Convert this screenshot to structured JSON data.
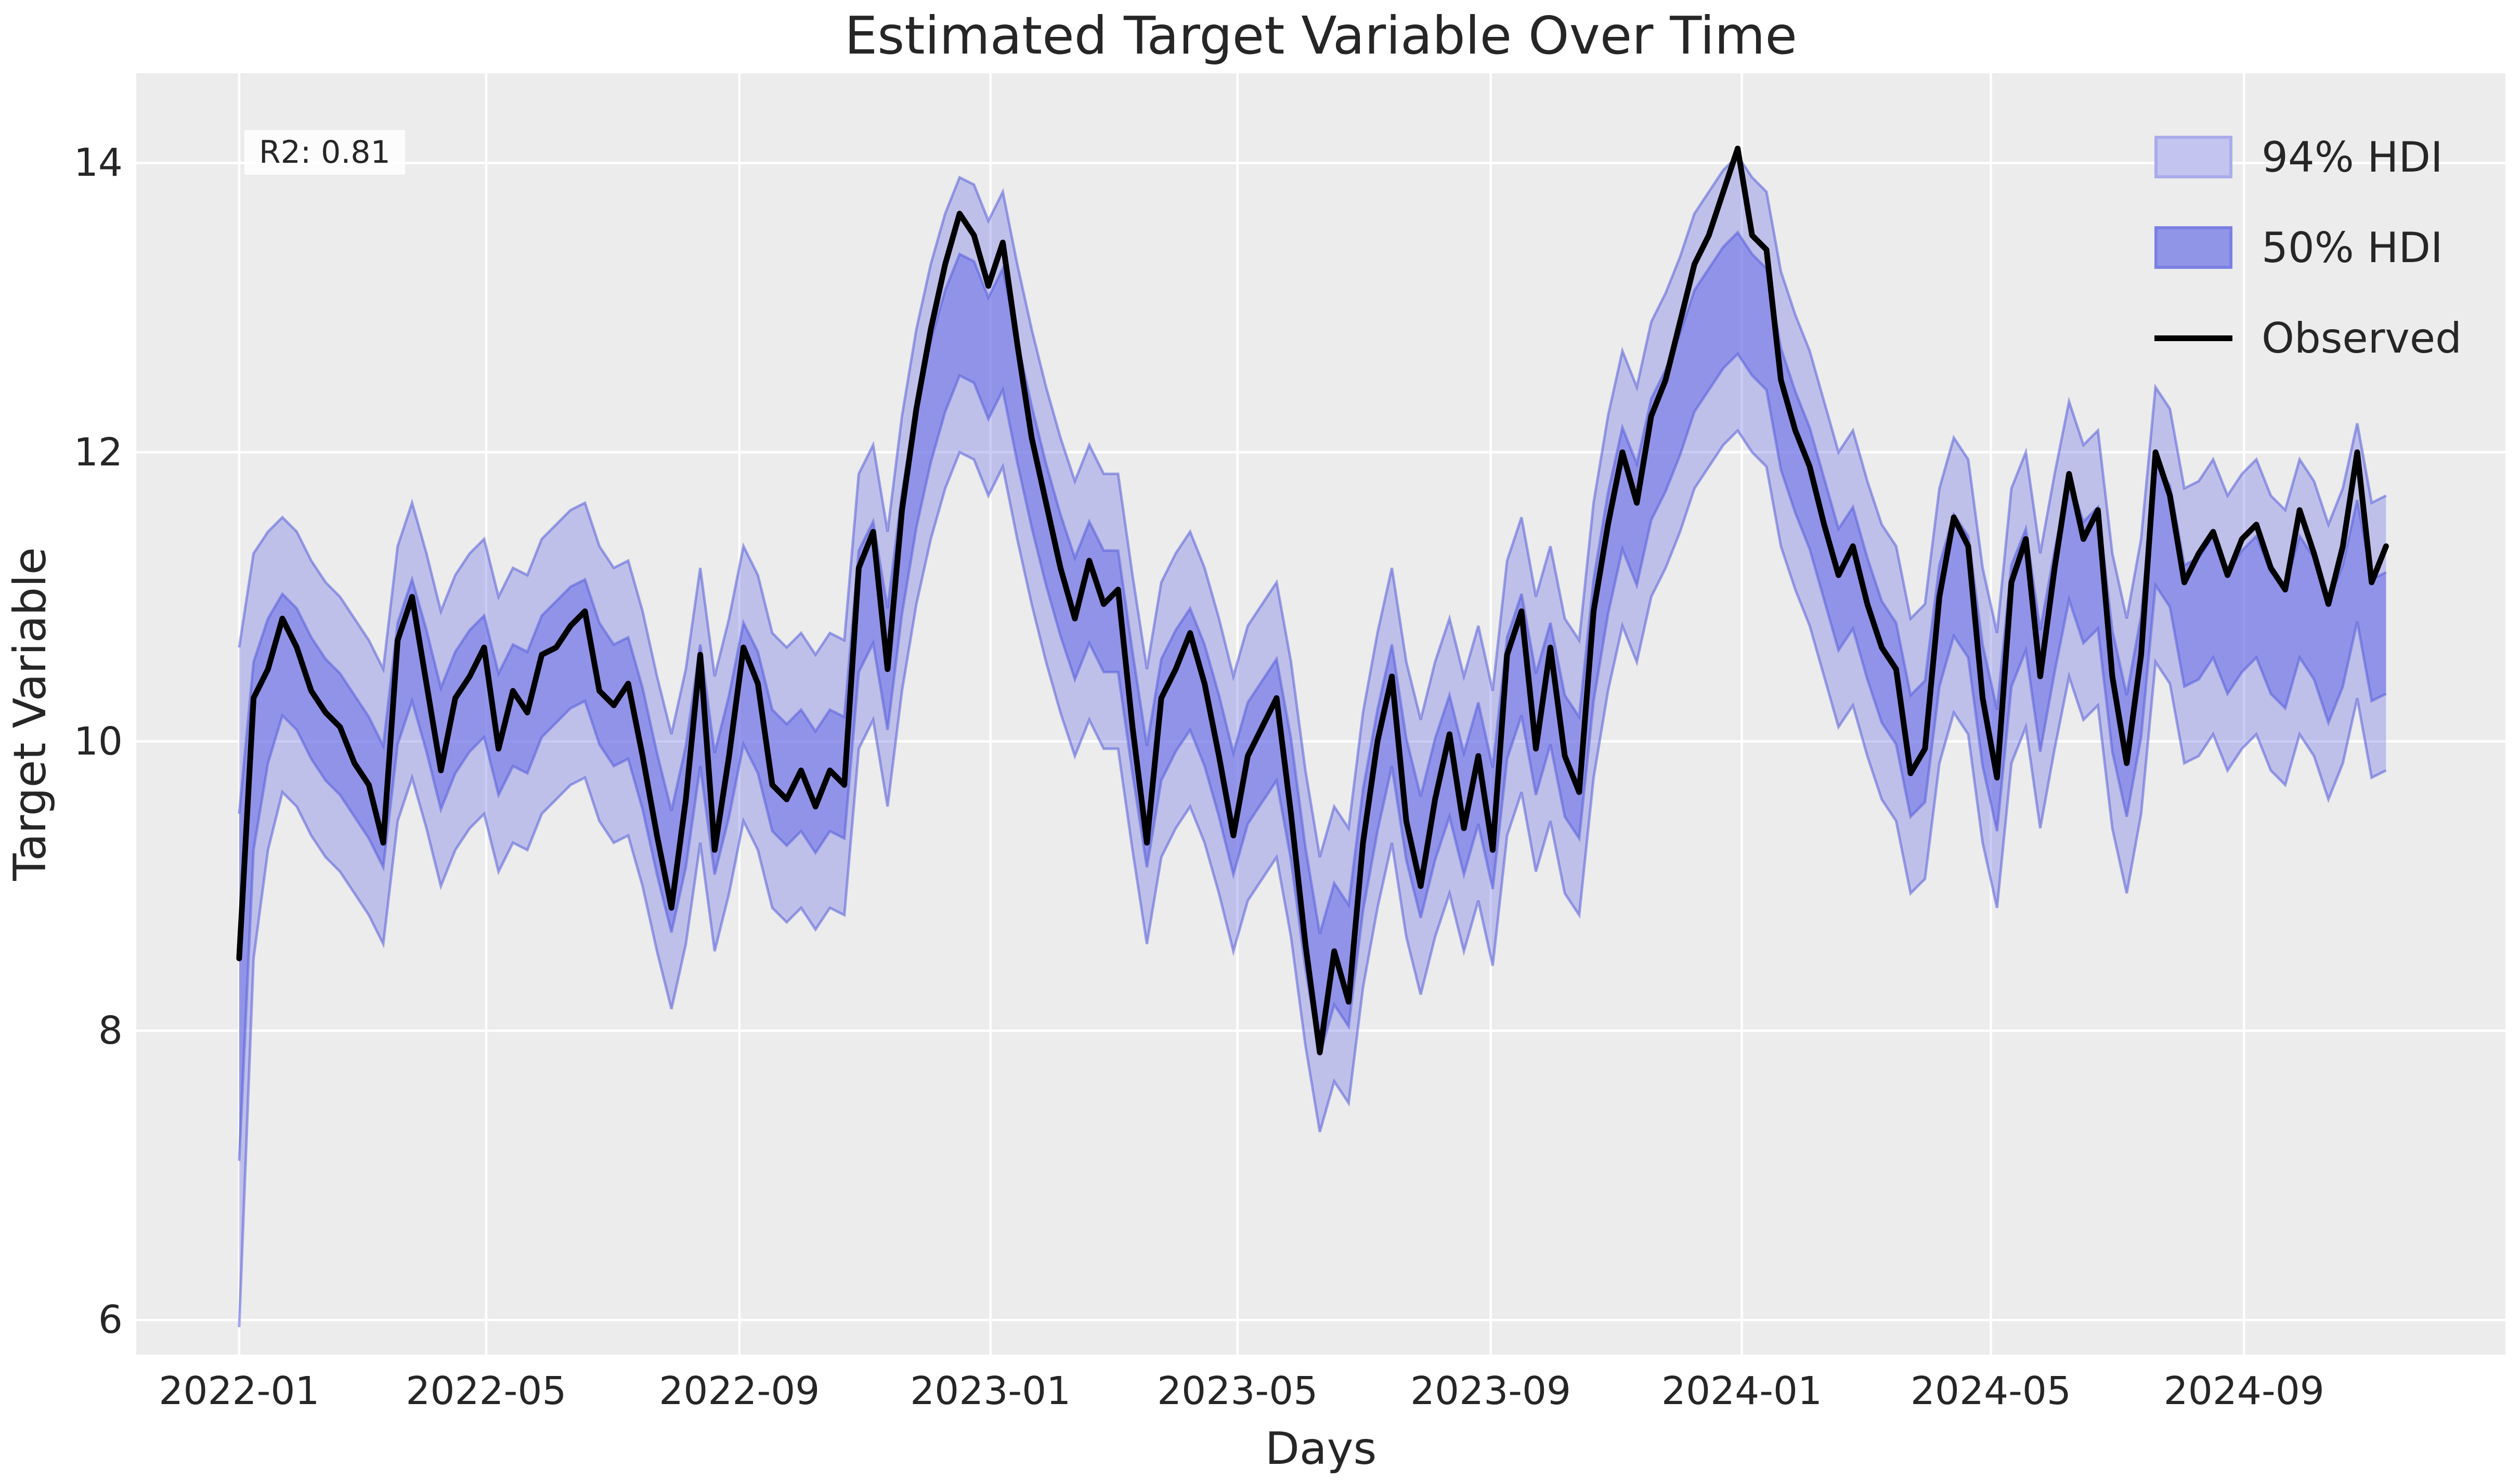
{
  "chart_data": {
    "type": "line",
    "title": "Estimated Target Variable Over Time",
    "xlabel": "Days",
    "ylabel": "Target Variable",
    "annotation": "R2: 0.81",
    "legend_position": "upper right",
    "grid": "on-white",
    "legend": [
      {
        "label": "94% HDI",
        "fill": "#c3c5f0",
        "border": "#a9ace9"
      },
      {
        "label": "50% HDI",
        "fill": "#9195e8",
        "border": "#7b80e4"
      },
      {
        "label": "Observed",
        "color": "#000000"
      }
    ],
    "colors": {
      "plot_background": "#ececec",
      "grid": "#ffffff",
      "hdi94_fill": "rgba(116,120,230,0.38)",
      "hdi50_fill": "rgba(116,120,230,0.62)",
      "band_edge": "rgba(88,94,218,0.55)",
      "observed": "#000000",
      "text": "#262626"
    },
    "x_start_date": "2022-01-01",
    "day_step": 7,
    "x_domain": [
      -50,
      1101
    ],
    "y_domain": [
      5.76,
      14.62
    ],
    "x_ticks": [
      {
        "day": 0,
        "label": "2022-01"
      },
      {
        "day": 120,
        "label": "2022-05"
      },
      {
        "day": 243,
        "label": "2022-09"
      },
      {
        "day": 365,
        "label": "2023-01"
      },
      {
        "day": 485,
        "label": "2023-05"
      },
      {
        "day": 608,
        "label": "2023-09"
      },
      {
        "day": 730,
        "label": "2024-01"
      },
      {
        "day": 851,
        "label": "2024-05"
      },
      {
        "day": 974,
        "label": "2024-09"
      }
    ],
    "y_ticks": [
      6,
      8,
      10,
      12,
      14
    ],
    "hdi94_halfwidth": 0.95,
    "hdi50_halfwidth": 0.42,
    "halfwidth_overrides": {
      "0": [
        2.35,
        1.2
      ],
      "1": [
        1.4,
        0.65
      ],
      "2": [
        1.1,
        0.5
      ]
    },
    "series": {
      "observed": [
        8.5,
        10.3,
        10.5,
        10.85,
        10.65,
        10.35,
        10.2,
        10.1,
        9.85,
        9.7,
        9.3,
        10.7,
        11.0,
        10.4,
        9.8,
        10.3,
        10.45,
        10.65,
        9.95,
        10.35,
        10.2,
        10.6,
        10.65,
        10.8,
        10.9,
        10.35,
        10.25,
        10.4,
        9.9,
        9.35,
        8.85,
        9.6,
        10.6,
        9.25,
        9.9,
        10.65,
        10.4,
        9.7,
        9.6,
        9.8,
        9.55,
        9.8,
        9.7,
        11.2,
        11.45,
        10.5,
        11.6,
        12.3,
        12.85,
        13.3,
        13.65,
        13.5,
        13.15,
        13.45,
        12.75,
        12.1,
        11.65,
        11.2,
        10.85,
        11.25,
        10.95,
        11.05,
        10.1,
        9.3,
        10.3,
        10.5,
        10.75,
        10.4,
        9.9,
        9.35,
        9.9,
        10.1,
        10.3,
        9.5,
        8.6,
        7.85,
        8.55,
        8.2,
        9.3,
        10.0,
        10.45,
        9.45,
        9.0,
        9.6,
        10.05,
        9.4,
        9.9,
        9.25,
        10.6,
        10.9,
        9.95,
        10.65,
        9.9,
        9.65,
        10.9,
        11.5,
        12.0,
        11.65,
        12.25,
        12.5,
        12.9,
        13.3,
        13.5,
        13.8,
        14.1,
        13.5,
        13.4,
        12.5,
        12.15,
        11.9,
        11.5,
        11.15,
        11.35,
        10.95,
        10.65,
        10.5,
        9.78,
        9.95,
        11.0,
        11.55,
        11.35,
        10.3,
        9.75,
        11.1,
        11.4,
        10.45,
        11.2,
        11.85,
        11.4,
        11.6,
        10.45,
        9.85,
        10.6,
        12.0,
        11.7,
        11.1,
        11.3,
        11.45,
        11.15,
        11.4,
        11.5,
        11.2,
        11.05,
        11.6,
        11.3,
        10.95,
        11.35,
        12.0,
        11.1,
        11.35
      ],
      "estimated_mean": [
        8.3,
        9.9,
        10.35,
        10.6,
        10.5,
        10.3,
        10.15,
        10.05,
        9.9,
        9.75,
        9.55,
        10.4,
        10.7,
        10.35,
        9.95,
        10.2,
        10.35,
        10.45,
        10.05,
        10.25,
        10.2,
        10.45,
        10.55,
        10.65,
        10.7,
        10.4,
        10.25,
        10.3,
        9.95,
        9.5,
        9.1,
        9.55,
        10.25,
        9.5,
        9.9,
        10.4,
        10.2,
        9.8,
        9.7,
        9.8,
        9.65,
        9.8,
        9.75,
        10.9,
        11.1,
        10.5,
        11.3,
        11.9,
        12.35,
        12.7,
        12.95,
        12.9,
        12.65,
        12.85,
        12.35,
        11.9,
        11.5,
        11.15,
        10.85,
        11.1,
        10.9,
        10.9,
        10.2,
        9.55,
        10.15,
        10.35,
        10.5,
        10.25,
        9.9,
        9.5,
        9.85,
        10.0,
        10.15,
        9.6,
        8.85,
        8.25,
        8.6,
        8.45,
        9.25,
        9.8,
        10.25,
        9.6,
        9.2,
        9.6,
        9.9,
        9.5,
        9.85,
        9.4,
        10.3,
        10.6,
        10.05,
        10.4,
        9.9,
        9.75,
        10.7,
        11.3,
        11.75,
        11.5,
        11.95,
        12.15,
        12.4,
        12.7,
        12.85,
        13.0,
        13.1,
        12.95,
        12.85,
        12.3,
        12.0,
        11.75,
        11.4,
        11.05,
        11.2,
        10.85,
        10.55,
        10.4,
        9.9,
        10.0,
        10.8,
        11.15,
        11.0,
        10.25,
        9.8,
        10.8,
        11.05,
        10.35,
        10.9,
        11.4,
        11.1,
        11.2,
        10.35,
        9.9,
        10.45,
        11.5,
        11.35,
        10.8,
        10.85,
        11.0,
        10.75,
        10.9,
        11.0,
        10.75,
        10.65,
        11.0,
        10.85,
        10.55,
        10.8,
        11.25,
        10.7,
        10.75
      ]
    }
  }
}
